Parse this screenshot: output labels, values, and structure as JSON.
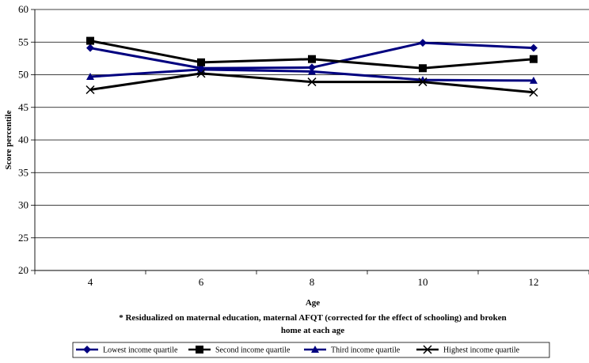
{
  "chart_data": {
    "type": "line",
    "title": "",
    "xlabel": "Age",
    "ylabel": "Score percentile",
    "note_lines": [
      "* Residualized on maternal education, maternal AFQT (corrected for the effect of schooling) and broken",
      "home at each age"
    ],
    "categories": [
      "4",
      "6",
      "8",
      "10",
      "12"
    ],
    "ylim": [
      20,
      60
    ],
    "yticks": [
      "20",
      "25",
      "30",
      "35",
      "40",
      "45",
      "50",
      "55",
      "60"
    ],
    "grid": "horizontal",
    "legend_position": "bottom",
    "series": [
      {
        "name": "Lowest income quartile",
        "marker": "diamond",
        "color": "#00007f",
        "values": [
          54.1,
          51.0,
          51.1,
          54.9,
          54.1
        ]
      },
      {
        "name": "Second income quartile",
        "marker": "square",
        "color": "#000000",
        "values": [
          55.2,
          51.9,
          52.4,
          51.0,
          52.4
        ]
      },
      {
        "name": "Third income quartile",
        "marker": "triangle",
        "color": "#00007f",
        "values": [
          49.7,
          50.8,
          50.5,
          49.2,
          49.1
        ]
      },
      {
        "name": "Highest income quartile",
        "marker": "x",
        "color": "#000000",
        "values": [
          47.7,
          50.2,
          48.9,
          48.9,
          47.3
        ]
      }
    ]
  }
}
